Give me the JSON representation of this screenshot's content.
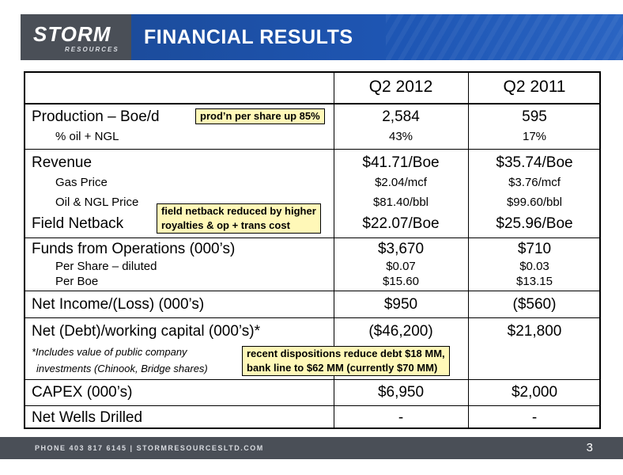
{
  "header": {
    "logo_main": "STORM",
    "logo_sub": "RESOURCES",
    "title": "FINANCIAL RESULTS"
  },
  "table": {
    "columns": [
      "Q2  2012",
      "Q2  2011"
    ],
    "production": {
      "label": "Production – Boe/d",
      "q2_2012": "2,584",
      "q2_2011": "595"
    },
    "oil_ngl_pct": {
      "label": "% oil + NGL",
      "q2_2012": "43%",
      "q2_2011": "17%"
    },
    "revenue": {
      "label": "Revenue",
      "q2_2012": "$41.71/Boe",
      "q2_2011": "$35.74/Boe"
    },
    "gas_price": {
      "label": "Gas Price",
      "q2_2012": "$2.04/mcf",
      "q2_2011": "$3.76/mcf"
    },
    "oil_price": {
      "label": "Oil & NGL Price",
      "q2_2012": "$81.40/bbl",
      "q2_2011": "$99.60/bbl"
    },
    "field_netback": {
      "label": "Field Netback",
      "q2_2012": "$22.07/Boe",
      "q2_2011": "$25.96/Boe"
    },
    "ffo": {
      "label": "Funds from Operations (000’s)",
      "q2_2012": "$3,670",
      "q2_2011": "$710"
    },
    "per_share": {
      "label": "Per Share – diluted",
      "q2_2012": "$0.07",
      "q2_2011": "$0.03"
    },
    "per_boe": {
      "label": "Per Boe",
      "q2_2012": "$15.60",
      "q2_2011": "$13.15"
    },
    "net_income": {
      "label": "Net Income/(Loss) (000’s)",
      "q2_2012": "$950",
      "q2_2011": "($560)"
    },
    "net_debt": {
      "label": "Net (Debt)/working capital (000’s)*",
      "q2_2012": "($46,200)",
      "q2_2011": "$21,800"
    },
    "footnote_1": "*Includes value of public company",
    "footnote_2": "investments (Chinook, Bridge shares)",
    "capex": {
      "label": "CAPEX (000’s)",
      "q2_2012": "$6,950",
      "q2_2011": "$2,000"
    },
    "wells": {
      "label": "Net Wells Drilled",
      "q2_2012": "-",
      "q2_2011": "-"
    }
  },
  "notes": {
    "production": "prod’n per share up 85%",
    "netback_1": "field netback reduced by higher",
    "netback_2": "royalties & op + trans cost",
    "debt_1": "recent dispositions reduce debt $18 MM,",
    "debt_2": "bank line to $62 MM (currently $70 MM)"
  },
  "footer": {
    "contact": "PHONE 403 817 6145   |   STORMRESOURCESLTD.COM",
    "page_number": "3"
  }
}
